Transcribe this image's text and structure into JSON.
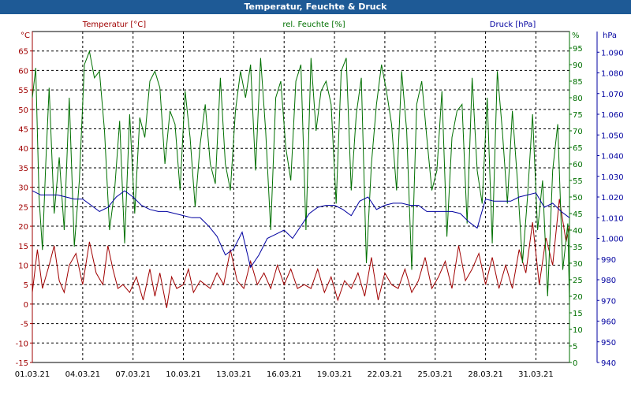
{
  "window": {
    "title": "Temperatur, Feuchte & Druck"
  },
  "chart_data": {
    "type": "line",
    "x_tick_labels": [
      "01.03.21",
      "04.03.21",
      "07.03.21",
      "10.03.21",
      "13.03.21",
      "16.03.21",
      "19.03.21",
      "22.03.21",
      "25.03.21",
      "28.03.21",
      "31.03.21"
    ],
    "x_range_days": [
      0,
      32
    ],
    "grid": true,
    "axes": {
      "temperature": {
        "label": "Temperatur [°C]",
        "unit": "°C",
        "range": [
          -15,
          70
        ],
        "ticks": [
          -15,
          -10,
          -5,
          0,
          5,
          10,
          15,
          20,
          25,
          30,
          35,
          40,
          45,
          50,
          55,
          60,
          65
        ],
        "color": "#a00000"
      },
      "humidity": {
        "label": "rel. Feuchte [%]",
        "unit": "%",
        "range": [
          0,
          100
        ],
        "ticks": [
          0,
          5,
          10,
          15,
          20,
          25,
          30,
          35,
          40,
          45,
          50,
          55,
          60,
          65,
          70,
          75,
          80,
          85,
          90,
          95
        ],
        "color": "#007000"
      },
      "pressure": {
        "label": "Druck [hPa]",
        "unit": "hPa",
        "range": [
          940,
          1100
        ],
        "ticks": [
          "940",
          "950",
          "960",
          "970",
          "980",
          "990",
          "1.000",
          "1.010",
          "1.020",
          "1.030",
          "1.040",
          "1.050",
          "1.060",
          "1.070",
          "1.080",
          "1.090"
        ],
        "color": "#0000a0"
      }
    },
    "series": [
      {
        "name": "Temperatur [°C]",
        "axis": "temperature",
        "color": "#a00000",
        "x": [
          0,
          0.3,
          0.6,
          1.0,
          1.3,
          1.6,
          1.9,
          2.2,
          2.6,
          3.0,
          3.4,
          3.8,
          4.2,
          4.5,
          4.8,
          5.1,
          5.4,
          5.8,
          6.2,
          6.6,
          7.0,
          7.3,
          7.6,
          8.0,
          8.3,
          8.6,
          9.0,
          9.3,
          9.6,
          10.0,
          10.3,
          10.6,
          11.0,
          11.4,
          11.8,
          12.2,
          12.6,
          13.0,
          13.4,
          13.8,
          14.2,
          14.6,
          15.0,
          15.4,
          15.8,
          16.2,
          16.6,
          17.0,
          17.4,
          17.8,
          18.2,
          18.6,
          19.0,
          19.4,
          19.8,
          20.2,
          20.6,
          21.0,
          21.4,
          21.8,
          22.2,
          22.6,
          23.0,
          23.4,
          23.8,
          24.2,
          24.6,
          25.0,
          25.4,
          25.8,
          26.2,
          26.6,
          27.0,
          27.4,
          27.8,
          28.2,
          28.6,
          29.0,
          29.4,
          29.8,
          30.2,
          30.6,
          31.0,
          31.4,
          31.8,
          32.0
        ],
        "values": [
          3,
          14,
          4,
          10,
          15,
          6,
          3,
          10,
          13,
          5,
          16,
          8,
          5,
          15,
          9,
          4,
          5,
          3,
          7,
          1,
          9,
          2,
          8,
          -1,
          7,
          4,
          5,
          9,
          3,
          6,
          5,
          4,
          8,
          5,
          14,
          6,
          4,
          11,
          5,
          8,
          4,
          10,
          5,
          9,
          4,
          5,
          4,
          9,
          3,
          7,
          1,
          6,
          4,
          8,
          2,
          12,
          1,
          8,
          5,
          4,
          9,
          3,
          6,
          12,
          4,
          7,
          11,
          4,
          15,
          6,
          9,
          13,
          5,
          12,
          4,
          10,
          4,
          14,
          8,
          21,
          5,
          17,
          10,
          27,
          16,
          20
        ]
      },
      {
        "name": "rel. Feuchte [%]",
        "axis": "humidity",
        "color": "#007000",
        "x": [
          0,
          0.2,
          0.4,
          0.6,
          0.8,
          1.0,
          1.3,
          1.6,
          1.9,
          2.2,
          2.5,
          2.8,
          3.1,
          3.4,
          3.7,
          4.0,
          4.3,
          4.6,
          4.9,
          5.2,
          5.5,
          5.8,
          6.1,
          6.4,
          6.7,
          7.0,
          7.3,
          7.6,
          7.9,
          8.2,
          8.5,
          8.8,
          9.1,
          9.4,
          9.7,
          10.0,
          10.3,
          10.6,
          10.9,
          11.2,
          11.5,
          11.8,
          12.1,
          12.4,
          12.7,
          13.0,
          13.3,
          13.6,
          13.9,
          14.2,
          14.5,
          14.8,
          15.1,
          15.4,
          15.7,
          16.0,
          16.3,
          16.6,
          16.9,
          17.2,
          17.5,
          17.8,
          18.1,
          18.4,
          18.7,
          19.0,
          19.3,
          19.6,
          19.9,
          20.2,
          20.5,
          20.8,
          21.1,
          21.4,
          21.7,
          22.0,
          22.3,
          22.6,
          22.9,
          23.2,
          23.5,
          23.8,
          24.1,
          24.4,
          24.7,
          25.0,
          25.3,
          25.6,
          25.9,
          26.2,
          26.5,
          26.8,
          27.1,
          27.4,
          27.7,
          28.0,
          28.3,
          28.6,
          28.9,
          29.2,
          29.5,
          29.8,
          30.1,
          30.4,
          30.7,
          31.0,
          31.3,
          31.6,
          31.9,
          32.0
        ],
        "values": [
          80,
          89,
          50,
          34,
          60,
          83,
          45,
          62,
          40,
          80,
          35,
          55,
          90,
          94,
          86,
          88,
          70,
          40,
          52,
          73,
          36,
          75,
          45,
          74,
          68,
          85,
          88,
          83,
          60,
          76,
          72,
          52,
          82,
          68,
          47,
          66,
          78,
          60,
          54,
          86,
          60,
          52,
          76,
          88,
          80,
          90,
          58,
          92,
          70,
          40,
          80,
          85,
          65,
          55,
          85,
          90,
          40,
          92,
          70,
          82,
          85,
          78,
          48,
          88,
          92,
          52,
          75,
          86,
          30,
          60,
          78,
          90,
          82,
          72,
          52,
          88,
          70,
          28,
          78,
          85,
          68,
          52,
          58,
          82,
          38,
          68,
          76,
          78,
          42,
          86,
          58,
          48,
          80,
          36,
          88,
          70,
          48,
          76,
          55,
          30,
          50,
          75,
          40,
          55,
          20,
          58,
          72,
          28,
          42,
          18
        ],
        "note_skip": true
      },
      {
        "name": "Druck [hPa]",
        "axis": "pressure",
        "color": "#0000a0",
        "x": [
          0,
          0.5,
          1.0,
          1.5,
          2.0,
          2.5,
          3.0,
          3.5,
          4.0,
          4.5,
          5.0,
          5.5,
          6.0,
          6.5,
          7.0,
          7.5,
          8.0,
          8.5,
          9.0,
          9.5,
          10.0,
          10.5,
          11.0,
          11.5,
          12.0,
          12.5,
          13.0,
          13.5,
          14.0,
          14.5,
          15.0,
          15.5,
          16.0,
          16.5,
          17.0,
          17.5,
          18.0,
          18.5,
          19.0,
          19.5,
          20.0,
          20.5,
          21.0,
          21.5,
          22.0,
          22.5,
          23.0,
          23.5,
          24.0,
          24.5,
          25.0,
          25.5,
          26.0,
          26.5,
          27.0,
          27.5,
          28.0,
          28.5,
          29.0,
          29.5,
          30.0,
          30.5,
          31.0,
          31.5,
          32.0
        ],
        "values": [
          1023,
          1021,
          1021,
          1021,
          1020,
          1019,
          1019,
          1016,
          1013,
          1015,
          1020,
          1023,
          1020,
          1016,
          1014,
          1013,
          1013,
          1012,
          1011,
          1010,
          1010,
          1006,
          1001,
          992,
          995,
          1003,
          986,
          992,
          1000,
          1002,
          1004,
          1000,
          1006,
          1012,
          1015,
          1016,
          1016,
          1014,
          1011,
          1018,
          1020,
          1014,
          1016,
          1017,
          1017,
          1016,
          1016,
          1013,
          1013,
          1013,
          1013,
          1012,
          1008,
          1005,
          1019,
          1018,
          1018,
          1018,
          1020,
          1021,
          1022,
          1015,
          1017,
          1013,
          1010
        ]
      }
    ]
  }
}
